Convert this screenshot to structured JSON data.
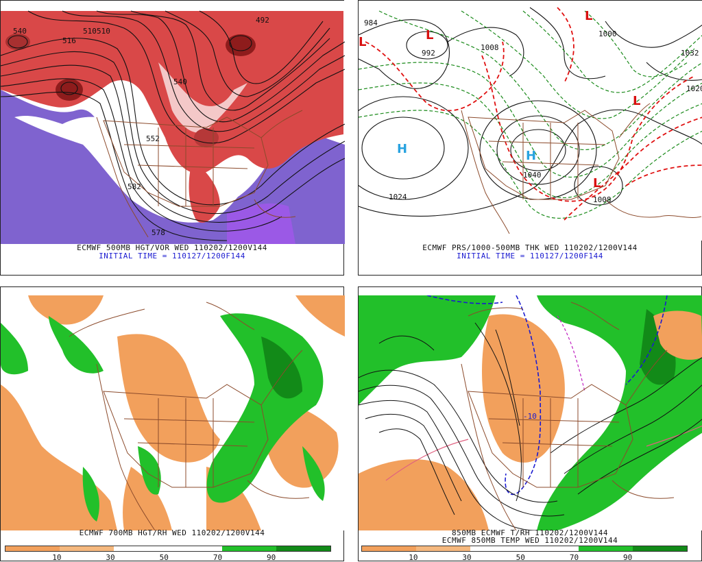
{
  "panels": {
    "top_left": {
      "caption_line1": "ECMWF 500MB HGT/VOR WED 110202/1200V144",
      "caption_line2": "INITIAL TIME = 110127/1200F144",
      "contour_labels": [
        "540",
        "516",
        "510",
        "552",
        "540",
        "582",
        "578",
        "510",
        "492"
      ]
    },
    "top_right": {
      "caption_line1": "ECMWF PRS/1000-500MB THK WED 110202/1200V144",
      "caption_line2": "INITIAL TIME = 110127/1200F144",
      "pressure_labels": [
        "984",
        "992",
        "1008",
        "1024",
        "1040",
        "1008",
        "1032",
        "1020",
        "1000"
      ],
      "highs": [
        "H",
        "H"
      ],
      "lows": [
        "L",
        "L",
        "L",
        "L",
        "L"
      ]
    },
    "bottom_left": {
      "caption_line1": "ECMWF 700MB HGT/RH WED 110202/1200V144",
      "colorbar_labels": [
        "10",
        "30",
        "50",
        "70",
        "90"
      ]
    },
    "bottom_right": {
      "caption_line1": "850MB ECMWF T/RH 110202/1200V144",
      "caption_line2": "ECMWF 850MB TEMP WED 110202/1200V144",
      "temp_label": "-10",
      "colorbar_labels": [
        "10",
        "30",
        "50",
        "70",
        "90"
      ]
    }
  },
  "colors": {
    "vorticity_red": "#d94848",
    "vorticity_dark": "#8e1c1c",
    "vorticity_purple": "#7f63cf",
    "dry_orange": "#f2a05c",
    "moist_green": "#22c02a",
    "moist_dark_green": "#128a18",
    "thickness_red": "#e01010",
    "thickness_green": "#1a8a1a",
    "high_blue": "#29a3e0",
    "low_red": "#d81010",
    "border_brown": "#8b4a2b"
  }
}
